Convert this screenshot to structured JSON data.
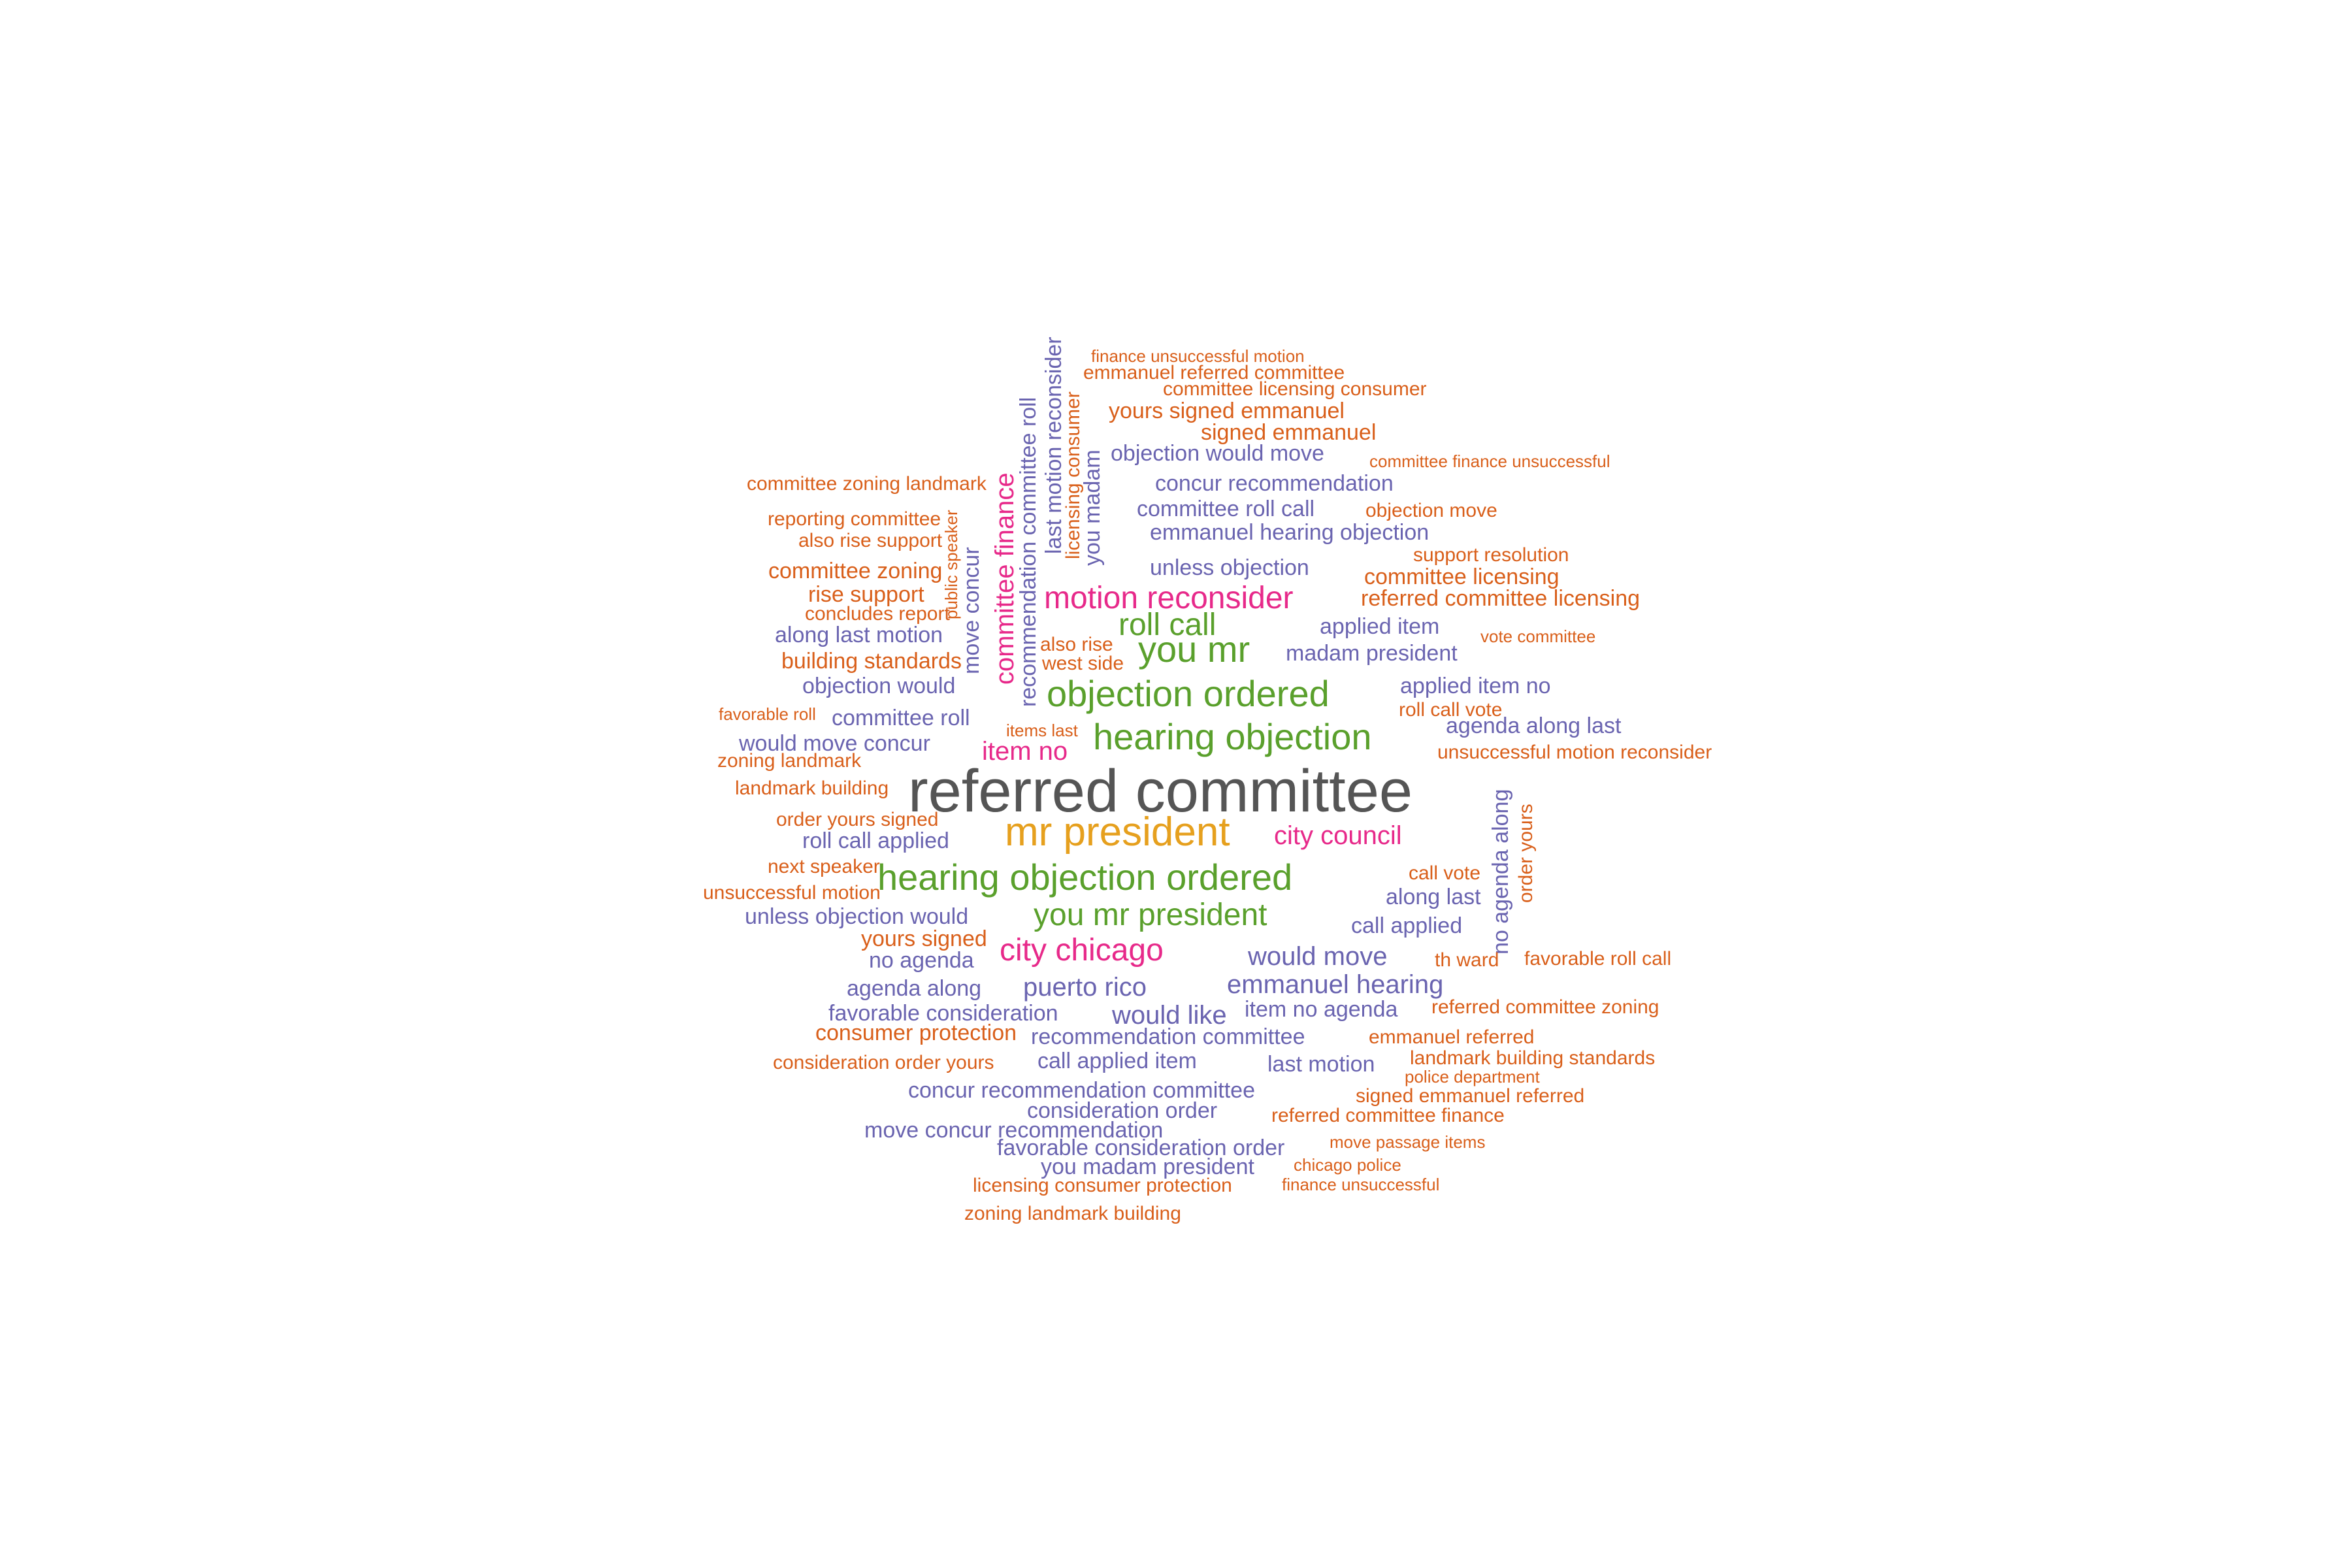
{
  "words": [
    {
      "text": "referred committee",
      "color": "c1"
    },
    {
      "text": "mr president",
      "color": "c2"
    },
    {
      "text": "hearing objection ordered",
      "color": "c3"
    },
    {
      "text": "objection ordered",
      "color": "c3"
    },
    {
      "text": "hearing objection",
      "color": "c3"
    },
    {
      "text": "you mr president",
      "color": "c3"
    },
    {
      "text": "you mr",
      "color": "c3"
    },
    {
      "text": "roll call",
      "color": "c3"
    },
    {
      "text": "motion reconsider",
      "color": "c4"
    },
    {
      "text": "city chicago",
      "color": "c4"
    },
    {
      "text": "city council",
      "color": "c4"
    },
    {
      "text": "item no",
      "color": "c4"
    },
    {
      "text": "committee finance",
      "color": "c4"
    },
    {
      "text": "committee roll call",
      "color": "c5"
    },
    {
      "text": "emmanuel hearing objection",
      "color": "c5"
    },
    {
      "text": "concur recommendation",
      "color": "c5"
    },
    {
      "text": "objection would move",
      "color": "c5"
    },
    {
      "text": "unless objection",
      "color": "c5"
    },
    {
      "text": "applied item",
      "color": "c5"
    },
    {
      "text": "madam president",
      "color": "c5"
    },
    {
      "text": "applied item no",
      "color": "c5"
    },
    {
      "text": "agenda along last",
      "color": "c5"
    },
    {
      "text": "along last motion",
      "color": "c5"
    },
    {
      "text": "objection would",
      "color": "c5"
    },
    {
      "text": "committee roll",
      "color": "c5"
    },
    {
      "text": "would move concur",
      "color": "c5"
    },
    {
      "text": "roll call applied",
      "color": "c5"
    },
    {
      "text": "unless objection would",
      "color": "c5"
    },
    {
      "text": "no agenda",
      "color": "c5"
    },
    {
      "text": "agenda along",
      "color": "c5"
    },
    {
      "text": "puerto rico",
      "color": "c5"
    },
    {
      "text": "favorable consideration",
      "color": "c5"
    },
    {
      "text": "would like",
      "color": "c5"
    },
    {
      "text": "recommendation committee",
      "color": "c5"
    },
    {
      "text": "call applied item",
      "color": "c5"
    },
    {
      "text": "last motion",
      "color": "c5"
    },
    {
      "text": "concur recommendation committee",
      "color": "c5"
    },
    {
      "text": "consideration order",
      "color": "c5"
    },
    {
      "text": "move concur recommendation",
      "color": "c5"
    },
    {
      "text": "favorable consideration order",
      "color": "c5"
    },
    {
      "text": "you madam president",
      "color": "c5"
    },
    {
      "text": "would move",
      "color": "c5"
    },
    {
      "text": "emmanuel hearing",
      "color": "c5"
    },
    {
      "text": "item no agenda",
      "color": "c5"
    },
    {
      "text": "along last",
      "color": "c5"
    },
    {
      "text": "call applied",
      "color": "c5"
    },
    {
      "text": "recommendation committee roll",
      "color": "c5"
    },
    {
      "text": "last motion reconsider",
      "color": "c5"
    },
    {
      "text": "you madam",
      "color": "c5"
    },
    {
      "text": "move concur",
      "color": "c5"
    },
    {
      "text": "no agenda along",
      "color": "c5"
    },
    {
      "text": "finance unsuccessful motion",
      "color": "c6"
    },
    {
      "text": "emmanuel referred committee",
      "color": "c6"
    },
    {
      "text": "committee licensing consumer",
      "color": "c6"
    },
    {
      "text": "yours signed emmanuel",
      "color": "c6"
    },
    {
      "text": "signed emmanuel",
      "color": "c6"
    },
    {
      "text": "committee finance unsuccessful",
      "color": "c6"
    },
    {
      "text": "committee zoning landmark",
      "color": "c6"
    },
    {
      "text": "objection move",
      "color": "c6"
    },
    {
      "text": "reporting committee",
      "color": "c6"
    },
    {
      "text": "also rise support",
      "color": "c6"
    },
    {
      "text": "support resolution",
      "color": "c6"
    },
    {
      "text": "committee zoning",
      "color": "c6"
    },
    {
      "text": "committee licensing",
      "color": "c6"
    },
    {
      "text": "rise support",
      "color": "c6"
    },
    {
      "text": "referred committee licensing",
      "color": "c6"
    },
    {
      "text": "concludes report",
      "color": "c6"
    },
    {
      "text": "vote committee",
      "color": "c6"
    },
    {
      "text": "also rise",
      "color": "c6"
    },
    {
      "text": "building standards",
      "color": "c6"
    },
    {
      "text": "west side",
      "color": "c6"
    },
    {
      "text": "favorable roll",
      "color": "c6"
    },
    {
      "text": "roll call vote",
      "color": "c6"
    },
    {
      "text": "items last",
      "color": "c6"
    },
    {
      "text": "zoning landmark",
      "color": "c6"
    },
    {
      "text": "unsuccessful motion reconsider",
      "color": "c6"
    },
    {
      "text": "landmark building",
      "color": "c6"
    },
    {
      "text": "order yours signed",
      "color": "c6"
    },
    {
      "text": "next speaker",
      "color": "c6"
    },
    {
      "text": "call vote",
      "color": "c6"
    },
    {
      "text": "unsuccessful motion",
      "color": "c6"
    },
    {
      "text": "yours signed",
      "color": "c6"
    },
    {
      "text": "th ward",
      "color": "c6"
    },
    {
      "text": "favorable roll call",
      "color": "c6"
    },
    {
      "text": "referred committee zoning",
      "color": "c6"
    },
    {
      "text": "consumer protection",
      "color": "c6"
    },
    {
      "text": "emmanuel referred",
      "color": "c6"
    },
    {
      "text": "landmark building standards",
      "color": "c6"
    },
    {
      "text": "consideration order yours",
      "color": "c6"
    },
    {
      "text": "police department",
      "color": "c6"
    },
    {
      "text": "signed emmanuel referred",
      "color": "c6"
    },
    {
      "text": "referred committee finance",
      "color": "c6"
    },
    {
      "text": "move passage items",
      "color": "c6"
    },
    {
      "text": "chicago police",
      "color": "c6"
    },
    {
      "text": "licensing consumer protection",
      "color": "c6"
    },
    {
      "text": "finance unsuccessful",
      "color": "c6"
    },
    {
      "text": "zoning landmark building",
      "color": "c6"
    },
    {
      "text": "licensing consumer",
      "color": "c6"
    },
    {
      "text": "public speaker",
      "color": "c6"
    },
    {
      "text": "order yours",
      "color": "c6"
    }
  ],
  "colors": {
    "c1": "#555555",
    "c2": "#E6A01E",
    "c3": "#5AA02C",
    "c4": "#E7298A",
    "c5": "#6A64B0",
    "c6": "#D95F1A"
  }
}
